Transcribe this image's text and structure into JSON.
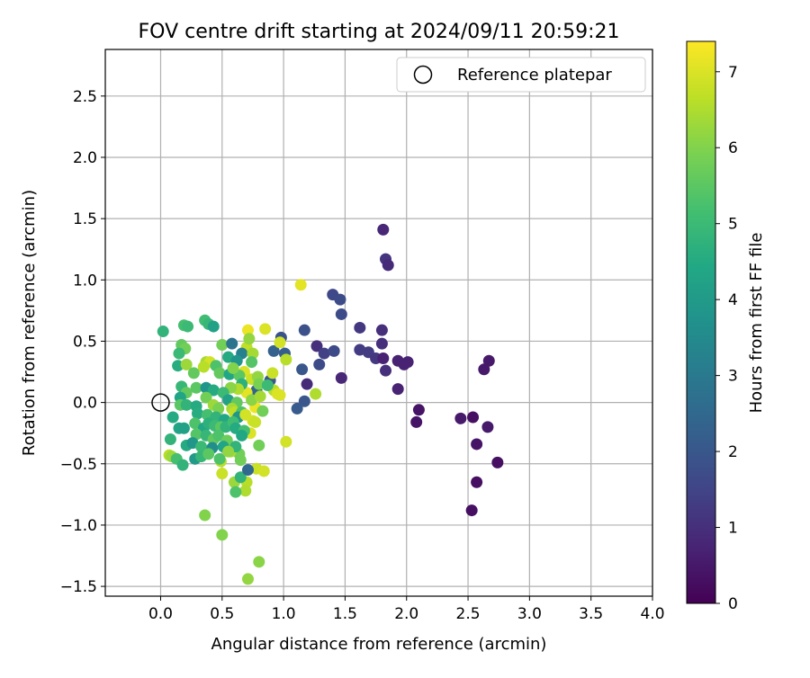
{
  "chart_data": {
    "type": "scatter",
    "title": "FOV centre drift starting at 2024/09/11 20:59:21",
    "xlabel": "Angular distance from reference (arcmin)",
    "ylabel": "Rotation from reference (arcmin)",
    "xlim": [
      -0.45,
      4.0
    ],
    "ylim": [
      -1.58,
      2.88
    ],
    "xticks": [
      0.0,
      0.5,
      1.0,
      1.5,
      2.0,
      2.5,
      3.0,
      3.5,
      4.0
    ],
    "xtick_labels": [
      "0.0",
      "0.5",
      "1.0",
      "1.5",
      "2.0",
      "2.5",
      "3.0",
      "3.5",
      "4.0"
    ],
    "yticks": [
      -1.5,
      -1.0,
      -0.5,
      0.0,
      0.5,
      1.0,
      1.5,
      2.0,
      2.5
    ],
    "ytick_labels": [
      "−1.5",
      "−1.0",
      "−0.5",
      "0.0",
      "0.5",
      "1.0",
      "1.5",
      "2.0",
      "2.5"
    ],
    "grid": true,
    "legend": {
      "placement": "top-right",
      "entries": [
        "Reference platepar"
      ]
    },
    "reference_point": {
      "x": 0.0,
      "y": 0.0,
      "label": "Reference platepar"
    },
    "colorbar": {
      "label": "Hours from first FF file",
      "colormap": "viridis",
      "range": [
        0,
        7.4
      ],
      "ticks": [
        0,
        1,
        2,
        3,
        4,
        5,
        6,
        7
      ],
      "tick_labels": [
        "0",
        "1",
        "2",
        "3",
        "4",
        "5",
        "6",
        "7"
      ]
    },
    "points": [
      {
        "x": 1.81,
        "y": 1.41,
        "h": 0.8
      },
      {
        "x": 1.83,
        "y": 1.17,
        "h": 1.1
      },
      {
        "x": 1.85,
        "y": 1.12,
        "h": 0.9
      },
      {
        "x": 1.4,
        "y": 0.88,
        "h": 1.6
      },
      {
        "x": 1.46,
        "y": 0.84,
        "h": 1.7
      },
      {
        "x": 1.47,
        "y": 0.72,
        "h": 1.7
      },
      {
        "x": 1.62,
        "y": 0.61,
        "h": 1.2
      },
      {
        "x": 1.8,
        "y": 0.59,
        "h": 1.0
      },
      {
        "x": 1.8,
        "y": 0.48,
        "h": 1.0
      },
      {
        "x": 1.62,
        "y": 0.43,
        "h": 1.3
      },
      {
        "x": 1.69,
        "y": 0.41,
        "h": 1.3
      },
      {
        "x": 1.75,
        "y": 0.36,
        "h": 1.2
      },
      {
        "x": 1.81,
        "y": 0.36,
        "h": 0.7
      },
      {
        "x": 1.83,
        "y": 0.26,
        "h": 1.0
      },
      {
        "x": 1.93,
        "y": 0.34,
        "h": 0.7
      },
      {
        "x": 1.98,
        "y": 0.31,
        "h": 0.7
      },
      {
        "x": 2.01,
        "y": 0.33,
        "h": 0.7
      },
      {
        "x": 1.93,
        "y": 0.11,
        "h": 0.7
      },
      {
        "x": 2.67,
        "y": 0.34,
        "h": 0.5
      },
      {
        "x": 2.63,
        "y": 0.27,
        "h": 0.5
      },
      {
        "x": 2.1,
        "y": -0.06,
        "h": 0.4
      },
      {
        "x": 2.08,
        "y": -0.16,
        "h": 0.4
      },
      {
        "x": 2.44,
        "y": -0.13,
        "h": 0.5
      },
      {
        "x": 2.54,
        "y": -0.12,
        "h": 0.3
      },
      {
        "x": 2.66,
        "y": -0.2,
        "h": 0.5
      },
      {
        "x": 2.57,
        "y": -0.34,
        "h": 0.4
      },
      {
        "x": 2.74,
        "y": -0.49,
        "h": 0.3
      },
      {
        "x": 2.57,
        "y": -0.65,
        "h": 0.3
      },
      {
        "x": 2.53,
        "y": -0.88,
        "h": 0.3
      },
      {
        "x": 1.17,
        "y": 0.59,
        "h": 1.8
      },
      {
        "x": 1.27,
        "y": 0.46,
        "h": 1.0
      },
      {
        "x": 1.33,
        "y": 0.4,
        "h": 1.4
      },
      {
        "x": 1.41,
        "y": 0.42,
        "h": 1.7
      },
      {
        "x": 1.29,
        "y": 0.31,
        "h": 1.7
      },
      {
        "x": 1.15,
        "y": 0.27,
        "h": 2.0
      },
      {
        "x": 1.19,
        "y": 0.15,
        "h": 0.9
      },
      {
        "x": 1.47,
        "y": 0.2,
        "h": 0.8
      },
      {
        "x": 1.17,
        "y": 0.01,
        "h": 2.0
      },
      {
        "x": 1.11,
        "y": -0.05,
        "h": 2.1
      },
      {
        "x": 1.01,
        "y": 0.4,
        "h": 2.2
      },
      {
        "x": 0.98,
        "y": 0.53,
        "h": 1.9
      },
      {
        "x": 0.92,
        "y": 0.42,
        "h": 2.3
      },
      {
        "x": 0.89,
        "y": 0.18,
        "h": 2.0
      },
      {
        "x": 0.78,
        "y": 0.1,
        "h": 2.4
      },
      {
        "x": 1.14,
        "y": 0.96,
        "h": 7.1
      },
      {
        "x": 0.85,
        "y": 0.6,
        "h": 7.0
      },
      {
        "x": 0.71,
        "y": 0.59,
        "h": 7.2
      },
      {
        "x": 0.97,
        "y": 0.49,
        "h": 6.9
      },
      {
        "x": 1.02,
        "y": 0.35,
        "h": 6.6
      },
      {
        "x": 0.91,
        "y": 0.24,
        "h": 6.8
      },
      {
        "x": 1.26,
        "y": 0.07,
        "h": 6.5
      },
      {
        "x": 0.97,
        "y": 0.06,
        "h": 7.0
      },
      {
        "x": 1.02,
        "y": -0.32,
        "h": 6.9
      },
      {
        "x": 0.7,
        "y": 0.45,
        "h": 6.7
      },
      {
        "x": 0.68,
        "y": 0.25,
        "h": 7.0
      },
      {
        "x": 0.74,
        "y": 0.19,
        "h": 6.8
      },
      {
        "x": 0.7,
        "y": 0.08,
        "h": 7.1
      },
      {
        "x": 0.77,
        "y": -0.04,
        "h": 7.2
      },
      {
        "x": 0.75,
        "y": -0.15,
        "h": 6.9
      },
      {
        "x": 0.73,
        "y": -0.25,
        "h": 7.0
      },
      {
        "x": 0.78,
        "y": -0.54,
        "h": 6.8
      },
      {
        "x": 0.84,
        "y": -0.56,
        "h": 6.9
      },
      {
        "x": 0.7,
        "y": -0.65,
        "h": 6.6
      },
      {
        "x": 0.69,
        "y": -0.72,
        "h": 6.5
      },
      {
        "x": 0.6,
        "y": -0.65,
        "h": 6.3
      },
      {
        "x": 0.5,
        "y": -0.58,
        "h": 6.8
      },
      {
        "x": 0.36,
        "y": -0.92,
        "h": 6.0
      },
      {
        "x": 0.5,
        "y": -1.08,
        "h": 6.0
      },
      {
        "x": 0.71,
        "y": -1.44,
        "h": 6.2
      },
      {
        "x": 0.8,
        "y": -1.3,
        "h": 6.1
      },
      {
        "x": 0.61,
        "y": -0.73,
        "h": 5.3
      },
      {
        "x": 0.65,
        "y": -0.61,
        "h": 4.8
      },
      {
        "x": 0.71,
        "y": -0.55,
        "h": 2.5
      },
      {
        "x": 0.64,
        "y": -0.42,
        "h": 5.8
      },
      {
        "x": 0.57,
        "y": -0.4,
        "h": 6.4
      },
      {
        "x": 0.49,
        "y": -0.48,
        "h": 6.6
      },
      {
        "x": 0.8,
        "y": -0.35,
        "h": 5.8
      },
      {
        "x": 0.02,
        "y": 0.58,
        "h": 4.8
      },
      {
        "x": 0.19,
        "y": 0.63,
        "h": 5.2
      },
      {
        "x": 0.22,
        "y": 0.62,
        "h": 5.0
      },
      {
        "x": 0.36,
        "y": 0.67,
        "h": 5.1
      },
      {
        "x": 0.39,
        "y": 0.64,
        "h": 4.9
      },
      {
        "x": 0.43,
        "y": 0.62,
        "h": 4.2
      },
      {
        "x": 0.17,
        "y": 0.47,
        "h": 5.6
      },
      {
        "x": 0.2,
        "y": 0.44,
        "h": 5.8
      },
      {
        "x": 0.15,
        "y": 0.4,
        "h": 5.0
      },
      {
        "x": 0.5,
        "y": 0.47,
        "h": 5.8
      },
      {
        "x": 0.58,
        "y": 0.48,
        "h": 2.8
      },
      {
        "x": 0.66,
        "y": 0.4,
        "h": 3.2
      },
      {
        "x": 0.72,
        "y": 0.52,
        "h": 6.2
      },
      {
        "x": 0.55,
        "y": 0.37,
        "h": 4.5
      },
      {
        "x": 0.62,
        "y": 0.34,
        "h": 3.8
      },
      {
        "x": 0.14,
        "y": 0.3,
        "h": 4.6
      },
      {
        "x": 0.21,
        "y": 0.31,
        "h": 6.3
      },
      {
        "x": 0.27,
        "y": 0.24,
        "h": 5.6
      },
      {
        "x": 0.37,
        "y": 0.33,
        "h": 6.4
      },
      {
        "x": 0.4,
        "y": 0.33,
        "h": 6.9
      },
      {
        "x": 0.35,
        "y": 0.29,
        "h": 6.6
      },
      {
        "x": 0.45,
        "y": 0.3,
        "h": 5.3
      },
      {
        "x": 0.48,
        "y": 0.24,
        "h": 5.6
      },
      {
        "x": 0.56,
        "y": 0.23,
        "h": 4.4
      },
      {
        "x": 0.64,
        "y": 0.22,
        "h": 5.5
      },
      {
        "x": 0.79,
        "y": 0.21,
        "h": 6.2
      },
      {
        "x": 0.66,
        "y": 0.15,
        "h": 4.7
      },
      {
        "x": 0.8,
        "y": 0.15,
        "h": 5.9
      },
      {
        "x": 0.63,
        "y": 0.11,
        "h": 6.5
      },
      {
        "x": 0.57,
        "y": 0.12,
        "h": 6.1
      },
      {
        "x": 0.17,
        "y": 0.13,
        "h": 4.9
      },
      {
        "x": 0.21,
        "y": 0.08,
        "h": 5.6
      },
      {
        "x": 0.29,
        "y": 0.12,
        "h": 5.5
      },
      {
        "x": 0.37,
        "y": 0.12,
        "h": 3.8
      },
      {
        "x": 0.43,
        "y": 0.1,
        "h": 4.5
      },
      {
        "x": 0.51,
        "y": 0.08,
        "h": 5.0
      },
      {
        "x": 0.16,
        "y": 0.04,
        "h": 4.3
      },
      {
        "x": 0.37,
        "y": 0.04,
        "h": 5.8
      },
      {
        "x": 0.55,
        "y": 0.02,
        "h": 4.2
      },
      {
        "x": 0.62,
        "y": 0.0,
        "h": 5.6
      },
      {
        "x": 0.74,
        "y": 0.02,
        "h": 6.1
      },
      {
        "x": 0.81,
        "y": 0.05,
        "h": 6.4
      },
      {
        "x": 0.16,
        "y": -0.02,
        "h": 5.5
      },
      {
        "x": 0.21,
        "y": -0.02,
        "h": 4.8
      },
      {
        "x": 0.29,
        "y": -0.03,
        "h": 4.5
      },
      {
        "x": 0.43,
        "y": -0.02,
        "h": 6.3
      },
      {
        "x": 0.47,
        "y": -0.05,
        "h": 5.9
      },
      {
        "x": 0.58,
        "y": -0.05,
        "h": 6.4
      },
      {
        "x": 0.6,
        "y": -0.08,
        "h": 6.7
      },
      {
        "x": 0.66,
        "y": -0.08,
        "h": 5.3
      },
      {
        "x": 0.83,
        "y": -0.07,
        "h": 5.8
      },
      {
        "x": 0.1,
        "y": -0.12,
        "h": 4.5
      },
      {
        "x": 0.3,
        "y": -0.09,
        "h": 4.6
      },
      {
        "x": 0.38,
        "y": -0.1,
        "h": 5.2
      },
      {
        "x": 0.45,
        "y": -0.12,
        "h": 4.8
      },
      {
        "x": 0.52,
        "y": -0.14,
        "h": 4.4
      },
      {
        "x": 0.63,
        "y": -0.12,
        "h": 3.9
      },
      {
        "x": 0.69,
        "y": -0.1,
        "h": 6.9
      },
      {
        "x": 0.77,
        "y": -0.16,
        "h": 6.8
      },
      {
        "x": 0.15,
        "y": -0.21,
        "h": 4.3
      },
      {
        "x": 0.19,
        "y": -0.21,
        "h": 4.2
      },
      {
        "x": 0.28,
        "y": -0.17,
        "h": 5.3
      },
      {
        "x": 0.35,
        "y": -0.21,
        "h": 4.4
      },
      {
        "x": 0.39,
        "y": -0.17,
        "h": 4.7
      },
      {
        "x": 0.44,
        "y": -0.19,
        "h": 5.0
      },
      {
        "x": 0.49,
        "y": -0.2,
        "h": 5.5
      },
      {
        "x": 0.53,
        "y": -0.2,
        "h": 4.8
      },
      {
        "x": 0.59,
        "y": -0.16,
        "h": 5.1
      },
      {
        "x": 0.61,
        "y": -0.21,
        "h": 4.5
      },
      {
        "x": 0.68,
        "y": -0.23,
        "h": 5.2
      },
      {
        "x": 0.08,
        "y": -0.3,
        "h": 4.8
      },
      {
        "x": 0.29,
        "y": -0.26,
        "h": 5.4
      },
      {
        "x": 0.37,
        "y": -0.27,
        "h": 4.9
      },
      {
        "x": 0.43,
        "y": -0.3,
        "h": 5.6
      },
      {
        "x": 0.47,
        "y": -0.27,
        "h": 5.3
      },
      {
        "x": 0.54,
        "y": -0.31,
        "h": 5.7
      },
      {
        "x": 0.66,
        "y": -0.27,
        "h": 4.4
      },
      {
        "x": 0.21,
        "y": -0.35,
        "h": 4.5
      },
      {
        "x": 0.26,
        "y": -0.33,
        "h": 3.9
      },
      {
        "x": 0.33,
        "y": -0.36,
        "h": 5.0
      },
      {
        "x": 0.42,
        "y": -0.37,
        "h": 3.6
      },
      {
        "x": 0.51,
        "y": -0.36,
        "h": 4.3
      },
      {
        "x": 0.61,
        "y": -0.36,
        "h": 4.8
      },
      {
        "x": 0.07,
        "y": -0.43,
        "h": 6.6
      },
      {
        "x": 0.09,
        "y": -0.44,
        "h": 6.3
      },
      {
        "x": 0.13,
        "y": -0.46,
        "h": 5.2
      },
      {
        "x": 0.18,
        "y": -0.51,
        "h": 4.8
      },
      {
        "x": 0.28,
        "y": -0.46,
        "h": 4.0
      },
      {
        "x": 0.33,
        "y": -0.44,
        "h": 4.9
      },
      {
        "x": 0.39,
        "y": -0.42,
        "h": 5.5
      },
      {
        "x": 0.48,
        "y": -0.46,
        "h": 5.3
      },
      {
        "x": 0.55,
        "y": -0.4,
        "h": 6.2
      },
      {
        "x": 0.65,
        "y": -0.47,
        "h": 5.8
      },
      {
        "x": 0.92,
        "y": 0.1,
        "h": 6.6
      },
      {
        "x": 0.95,
        "y": 0.07,
        "h": 7.0
      },
      {
        "x": 0.87,
        "y": 0.14,
        "h": 5.0
      },
      {
        "x": 0.59,
        "y": 0.28,
        "h": 6.0
      },
      {
        "x": 0.75,
        "y": 0.4,
        "h": 6.4
      },
      {
        "x": 0.74,
        "y": 0.33,
        "h": 5.4
      }
    ]
  }
}
